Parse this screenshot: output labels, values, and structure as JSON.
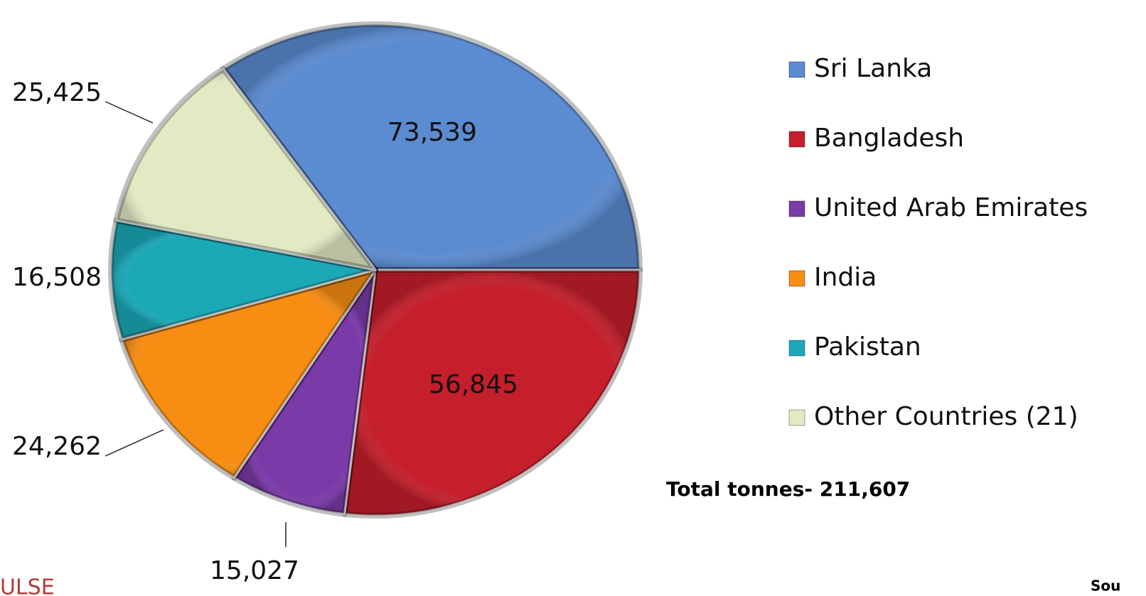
{
  "chart_data": {
    "type": "pie",
    "categories": [
      "Sri Lanka",
      "Bangladesh",
      "United Arab Emirates",
      "India",
      "Pakistan",
      "Other Countries (21)"
    ],
    "values": [
      73539,
      56845,
      15027,
      24262,
      16508,
      25425
    ],
    "value_labels": [
      "73,539",
      "56,845",
      "15,027",
      "24,262",
      "16,508",
      "25,425"
    ],
    "colors": [
      "#5b8bd0",
      "#c41f2b",
      "#7a3aa8",
      "#f78d12",
      "#1ba8b7",
      "#e2eac4"
    ],
    "legend": "right",
    "annotation": "Total tonnes- 211,607",
    "logo": "ULSE",
    "source": "Sou"
  }
}
